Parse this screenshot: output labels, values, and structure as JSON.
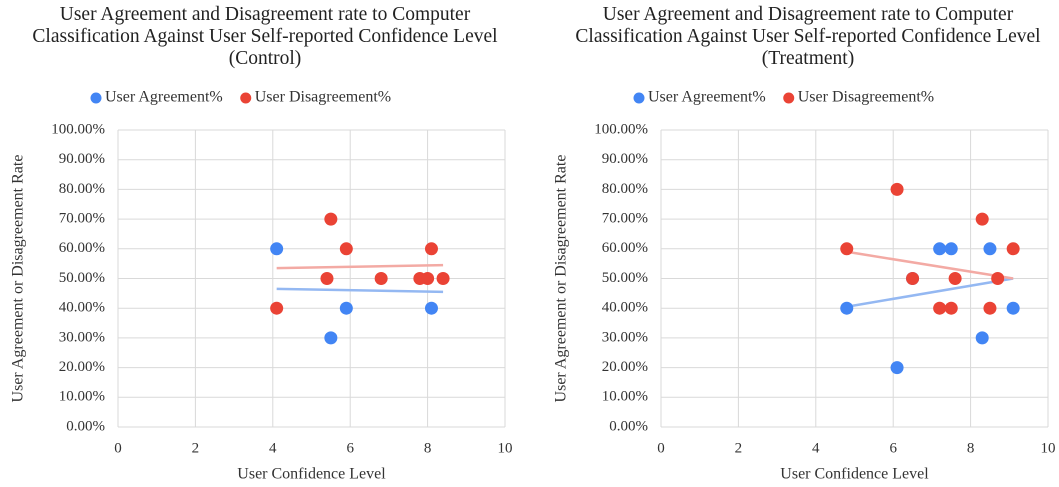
{
  "chart_data": [
    {
      "type": "scatter",
      "title": "User Agreement and Disagreement rate to Computer Classification Against User Self-reported Confidence Level (Control)",
      "xlabel": "User Confidence Level",
      "ylabel": "User Agreement or Disagreement Rate",
      "xlim": [
        0,
        10
      ],
      "xticks": [
        0,
        2,
        4,
        6,
        8,
        10
      ],
      "ylim": [
        0,
        100
      ],
      "yticks": [
        {
          "value": 0,
          "label": "0.00%"
        },
        {
          "value": 10,
          "label": "10.00%"
        },
        {
          "value": 20,
          "label": "20.00%"
        },
        {
          "value": 30,
          "label": "30.00%"
        },
        {
          "value": 40,
          "label": "40.00%"
        },
        {
          "value": 50,
          "label": "50.00%"
        },
        {
          "value": 60,
          "label": "60.00%"
        },
        {
          "value": 70,
          "label": "70.00%"
        },
        {
          "value": 80,
          "label": "80.00%"
        },
        {
          "value": 90,
          "label": "90.00%"
        },
        {
          "value": 100,
          "label": "100.00%"
        }
      ],
      "grid": true,
      "legend": "top",
      "series": [
        {
          "name": "User Agreement%",
          "color": "#4285f4",
          "x": [
            4.1,
            5.9,
            5.5,
            8.1
          ],
          "values": [
            60,
            40,
            30,
            40
          ]
        },
        {
          "name": "User Disagreement%",
          "color": "#ea4335",
          "x": [
            4.1,
            5.5,
            5.4,
            5.9,
            6.8,
            7.8,
            8.0,
            8.1,
            8.4
          ],
          "values": [
            40,
            70,
            50,
            60,
            50,
            50,
            50,
            60,
            50
          ]
        }
      ],
      "trendlines": [
        {
          "color": "#94b8f2",
          "x": [
            4.1,
            8.4
          ],
          "values": [
            46.5,
            45.5
          ]
        },
        {
          "color": "#f3aaa4",
          "x": [
            4.1,
            8.4
          ],
          "values": [
            53.5,
            54.5
          ]
        }
      ]
    },
    {
      "type": "scatter",
      "title": "User Agreement and Disagreement rate to Computer Classification Against User Self-reported Confidence Level (Treatment)",
      "xlabel": "User Confidence Level",
      "ylabel": "User Agreement or Disagreement Rate",
      "xlim": [
        0,
        10
      ],
      "xticks": [
        0,
        2,
        4,
        6,
        8,
        10
      ],
      "ylim": [
        0,
        100
      ],
      "yticks": [
        {
          "value": 0,
          "label": "0.00%"
        },
        {
          "value": 10,
          "label": "10.00%"
        },
        {
          "value": 20,
          "label": "20.00%"
        },
        {
          "value": 30,
          "label": "30.00%"
        },
        {
          "value": 40,
          "label": "40.00%"
        },
        {
          "value": 50,
          "label": "50.00%"
        },
        {
          "value": 60,
          "label": "60.00%"
        },
        {
          "value": 70,
          "label": "70.00%"
        },
        {
          "value": 80,
          "label": "80.00%"
        },
        {
          "value": 90,
          "label": "90.00%"
        },
        {
          "value": 100,
          "label": "100.00%"
        }
      ],
      "grid": true,
      "legend": "top",
      "series": [
        {
          "name": "User Agreement%",
          "color": "#4285f4",
          "x": [
            4.8,
            6.1,
            6.5,
            7.2,
            7.5,
            8.3,
            8.5,
            9.1
          ],
          "values": [
            40,
            20,
            50,
            60,
            60,
            30,
            60,
            40
          ]
        },
        {
          "name": "User Disagreement%",
          "color": "#ea4335",
          "x": [
            4.8,
            6.1,
            6.5,
            7.2,
            7.5,
            7.6,
            8.3,
            8.5,
            8.7,
            9.1
          ],
          "values": [
            60,
            80,
            50,
            40,
            40,
            50,
            70,
            40,
            50,
            60
          ]
        }
      ],
      "trendlines": [
        {
          "color": "#94b8f2",
          "x": [
            4.8,
            9.1
          ],
          "values": [
            40.5,
            50
          ]
        },
        {
          "color": "#f3aaa4",
          "x": [
            4.8,
            9.1
          ],
          "values": [
            59,
            50
          ]
        }
      ]
    }
  ]
}
